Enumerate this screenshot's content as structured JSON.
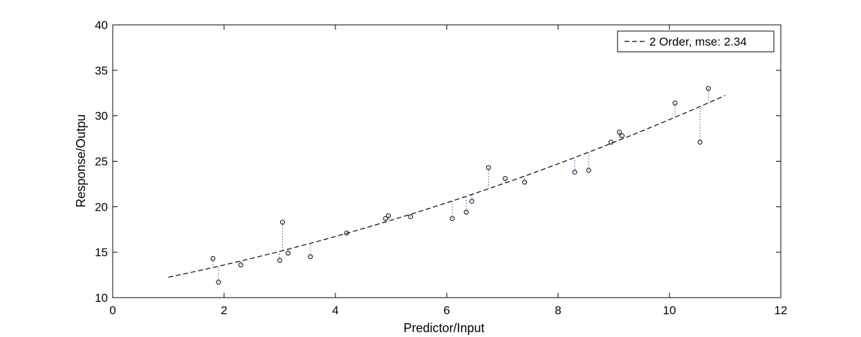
{
  "chart_data": {
    "type": "scatter",
    "title": "",
    "xlabel": "Predictor/Input",
    "ylabel": "Response/Outpu",
    "xlim": [
      0,
      12
    ],
    "ylim": [
      10,
      40
    ],
    "xticks": [
      0,
      2,
      4,
      6,
      8,
      10,
      12
    ],
    "yticks": [
      10,
      15,
      20,
      25,
      30,
      35,
      40
    ],
    "grid": false,
    "legend": {
      "position": "top-right",
      "entries": [
        "2 Order, mse:  2.34"
      ]
    },
    "series": [
      {
        "name": "2 Order, mse:  2.34",
        "kind": "fit-curve",
        "style": "dashed",
        "color": "#000000",
        "coefficients": {
          "a": 0.072,
          "b": 1.134,
          "c": 11.04
        },
        "x_range": [
          1.0,
          11.0
        ]
      }
    ],
    "points": {
      "marker": "circle",
      "color": "#000000",
      "x": [
        1.8,
        1.9,
        2.3,
        3.0,
        3.05,
        3.15,
        3.55,
        4.2,
        4.9,
        4.95,
        5.35,
        6.1,
        6.35,
        6.45,
        6.75,
        7.05,
        7.4,
        8.3,
        8.55,
        8.95,
        9.1,
        9.15,
        10.1,
        10.55,
        10.7
      ],
      "y": [
        14.3,
        11.7,
        13.6,
        14.1,
        18.3,
        14.9,
        14.5,
        17.1,
        18.7,
        19.0,
        18.9,
        18.7,
        19.4,
        20.6,
        24.3,
        23.1,
        22.7,
        23.8,
        24.0,
        27.1,
        28.2,
        27.8,
        31.4,
        27.1,
        33.0
      ]
    },
    "residual_lines": {
      "style": "dotted",
      "color": "#3b3bd1"
    }
  }
}
